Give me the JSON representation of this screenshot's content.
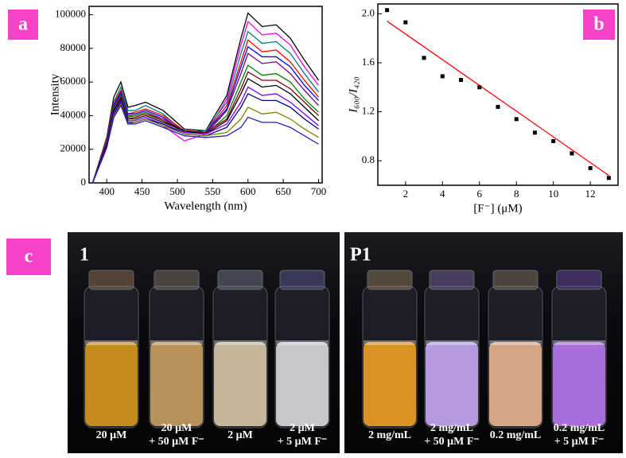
{
  "chart_data": [
    {
      "type": "line",
      "panel": "a",
      "ylabel": "Intensity",
      "xlabel": "Wavelength (nm)",
      "x": [
        380,
        400,
        410,
        420,
        430,
        440,
        455,
        480,
        510,
        540,
        570,
        590,
        600,
        620,
        640,
        660,
        680,
        700
      ],
      "xlim": [
        375,
        705
      ],
      "xticks": [
        400,
        450,
        500,
        550,
        600,
        650,
        700
      ],
      "ylim": [
        0,
        105000
      ],
      "yticks": [
        0,
        20000,
        40000,
        60000,
        80000,
        100000
      ],
      "series": [
        {
          "color": "#000000",
          "values": [
            0,
            27000,
            51000,
            60000,
            45000,
            46000,
            48000,
            43000,
            32000,
            31000,
            52000,
            86000,
            101000,
            93000,
            94000,
            86000,
            73000,
            61000
          ]
        },
        {
          "color": "#ff00ff",
          "values": [
            0,
            21000,
            40000,
            47000,
            35000,
            36000,
            38000,
            34000,
            25000,
            29000,
            50000,
            82000,
            96000,
            88000,
            89000,
            82000,
            69000,
            58000
          ]
        },
        {
          "color": "#008080",
          "values": [
            0,
            26000,
            48000,
            57000,
            43000,
            43000,
            46000,
            41000,
            30000,
            31000,
            48000,
            77000,
            90000,
            83000,
            84000,
            77000,
            65000,
            54000
          ]
        },
        {
          "color": "#ff0000",
          "values": [
            0,
            25000,
            47000,
            55000,
            41000,
            42000,
            44000,
            40000,
            31000,
            30000,
            46000,
            72000,
            85000,
            78000,
            79000,
            72000,
            61000,
            51000
          ]
        },
        {
          "color": "#0000ff",
          "values": [
            0,
            24000,
            46000,
            54000,
            41000,
            41000,
            43000,
            39000,
            30000,
            30000,
            44000,
            69000,
            81000,
            75000,
            75000,
            69000,
            58000,
            49000
          ]
        },
        {
          "color": "#800080",
          "values": [
            0,
            24000,
            45000,
            53000,
            40000,
            40000,
            42000,
            38000,
            31000,
            29000,
            43000,
            65000,
            77000,
            71000,
            72000,
            65000,
            55000,
            46000
          ]
        },
        {
          "color": "#008000",
          "values": [
            0,
            23000,
            44000,
            52000,
            39000,
            40000,
            42000,
            37000,
            30000,
            29000,
            40000,
            60000,
            70000,
            64000,
            65000,
            60000,
            50000,
            42000
          ]
        },
        {
          "color": "#800000",
          "values": [
            0,
            23000,
            43000,
            51000,
            38000,
            39000,
            41000,
            37000,
            31000,
            30000,
            38000,
            56000,
            66000,
            61000,
            61000,
            56000,
            48000,
            40000
          ]
        },
        {
          "color": "#000000",
          "values": [
            0,
            23000,
            43000,
            50000,
            38000,
            38000,
            40000,
            36000,
            31000,
            29000,
            37000,
            53000,
            62000,
            57000,
            58000,
            53000,
            45000,
            37000
          ]
        },
        {
          "color": "#8000ff",
          "values": [
            0,
            22000,
            42000,
            49000,
            37000,
            37000,
            39000,
            35000,
            30000,
            29000,
            35000,
            48000,
            57000,
            52000,
            53000,
            48000,
            41000,
            34000
          ]
        },
        {
          "color": "#000080",
          "values": [
            0,
            22000,
            41000,
            48000,
            36000,
            36000,
            38000,
            35000,
            29000,
            28000,
            33000,
            45000,
            53000,
            49000,
            49000,
            45000,
            38000,
            32000
          ]
        },
        {
          "color": "#808000",
          "values": [
            0,
            21000,
            40000,
            47000,
            35000,
            36000,
            38000,
            34000,
            29000,
            28000,
            30000,
            38000,
            45000,
            41000,
            42000,
            38000,
            32000,
            27000
          ]
        },
        {
          "color": "#2020c0",
          "values": [
            0,
            21000,
            39000,
            46000,
            35000,
            35000,
            37000,
            33000,
            28000,
            27000,
            28000,
            33000,
            39000,
            36000,
            36000,
            33000,
            28000,
            23000
          ]
        }
      ]
    },
    {
      "type": "scatter",
      "panel": "b",
      "ylabel": "I₆₀₀/I₄₂₀",
      "xlabel": "[F⁻] (μM)",
      "x": [
        1,
        2,
        3,
        4,
        5,
        6,
        7,
        8,
        9,
        10,
        11,
        12,
        13
      ],
      "values": [
        2.03,
        1.93,
        1.64,
        1.49,
        1.46,
        1.4,
        1.24,
        1.14,
        1.03,
        0.96,
        0.86,
        0.74,
        0.66
      ],
      "color": "#000000",
      "fit": {
        "x": [
          1,
          13
        ],
        "values": [
          1.94,
          0.68
        ],
        "color": "#ff0000"
      },
      "xlim": [
        0.5,
        13.5
      ],
      "xticks": [
        2,
        4,
        6,
        8,
        10,
        12
      ],
      "ylim": [
        0.6,
        2.08
      ],
      "yticks": [
        0.8,
        1.2,
        1.6,
        {
          "value": 2.0,
          "label": "2.0"
        }
      ]
    }
  ],
  "photos": {
    "panel": "c",
    "left": {
      "label": "1",
      "captions": [
        [
          "20 μM"
        ],
        [
          "20 μM",
          "+ 50 μM F⁻"
        ],
        [
          "2 μM"
        ],
        [
          "2 μM",
          "+ 5 μM F⁻"
        ]
      ]
    },
    "right": {
      "label": "P1",
      "captions": [
        [
          "2 mg/mL"
        ],
        [
          "2 mg/mL",
          "+ 50 μM F⁻"
        ],
        [
          "0.2 mg/mL"
        ],
        [
          "0.2 mg/mL",
          "+ 5 μM F⁻"
        ]
      ]
    }
  }
}
